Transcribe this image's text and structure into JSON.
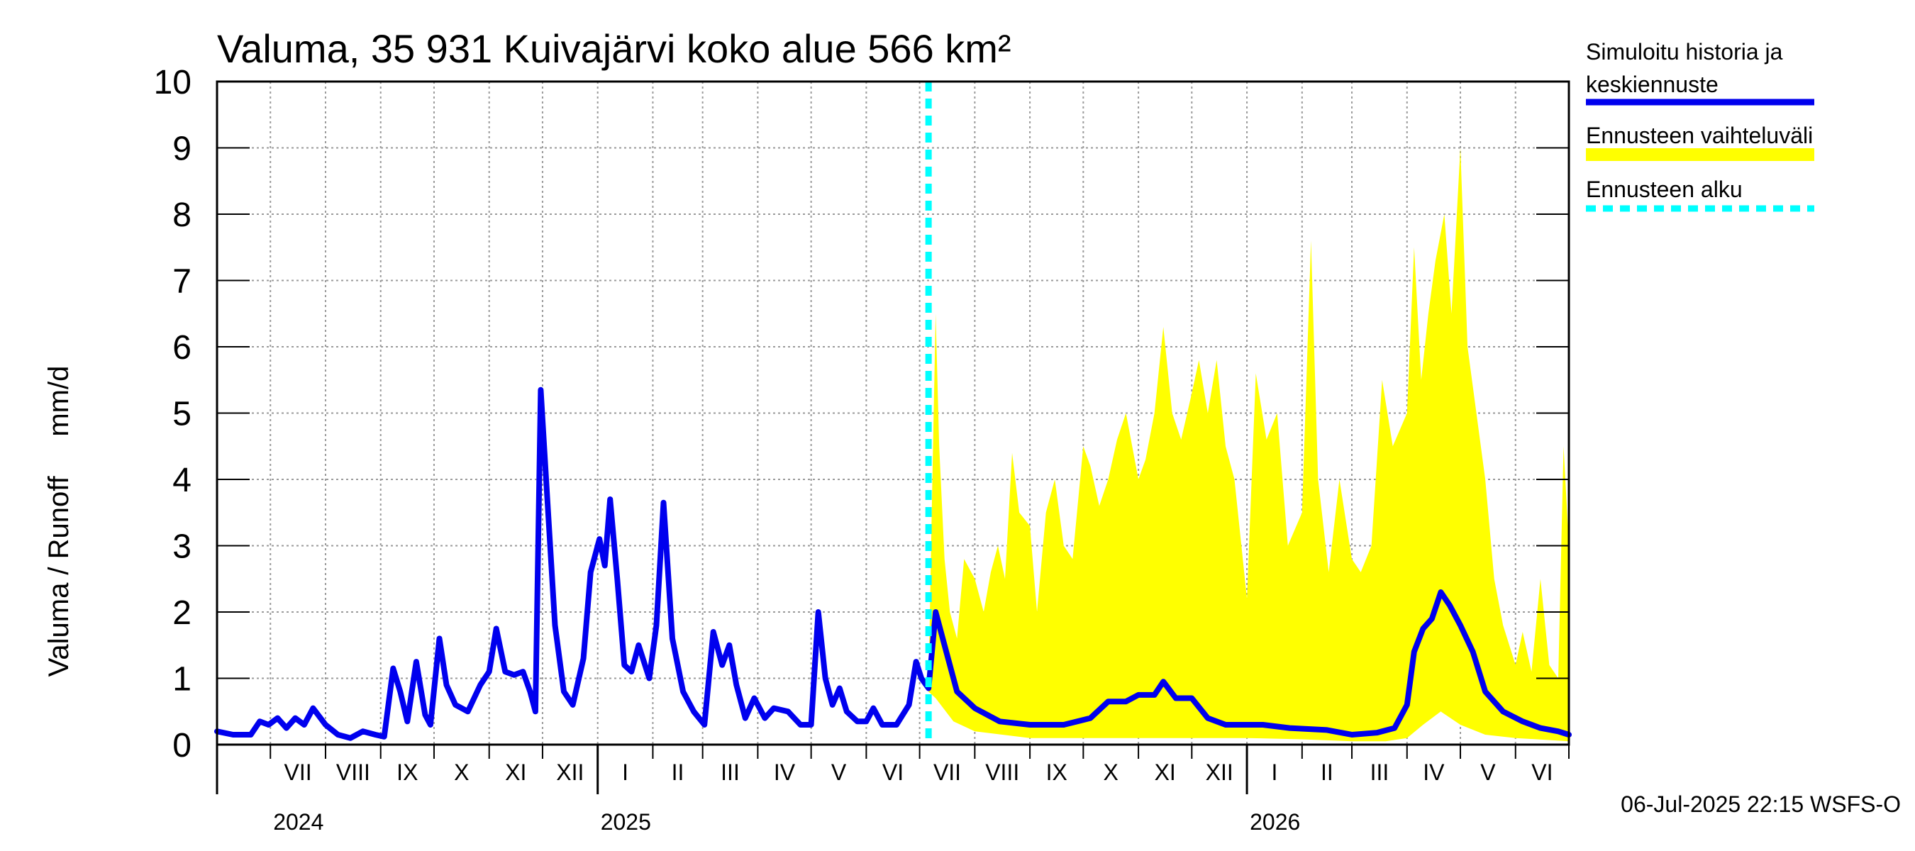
{
  "chart_data": {
    "type": "area",
    "title": "Valuma, 35 931 Kuivajärvi koko alue 566 km²",
    "ylabel": "Valuma / Runoff     mm/d",
    "ylim": [
      0,
      10
    ],
    "yticks": [
      0,
      1,
      2,
      3,
      4,
      5,
      6,
      7,
      8,
      9,
      10
    ],
    "grid": true,
    "legend_position": "right",
    "xlim": [
      "2024-06-01",
      "2026-07-01"
    ],
    "month_labels": [
      {
        "label": "VII",
        "month": "2024-07"
      },
      {
        "label": "VIII",
        "month": "2024-08"
      },
      {
        "label": "IX",
        "month": "2024-09"
      },
      {
        "label": "X",
        "month": "2024-10"
      },
      {
        "label": "XI",
        "month": "2024-11"
      },
      {
        "label": "XII",
        "month": "2024-12"
      },
      {
        "label": "I",
        "month": "2025-01"
      },
      {
        "label": "II",
        "month": "2025-02"
      },
      {
        "label": "III",
        "month": "2025-03"
      },
      {
        "label": "IV",
        "month": "2025-04"
      },
      {
        "label": "V",
        "month": "2025-05"
      },
      {
        "label": "VI",
        "month": "2025-06"
      },
      {
        "label": "VII",
        "month": "2025-07"
      },
      {
        "label": "VIII",
        "month": "2025-08"
      },
      {
        "label": "IX",
        "month": "2025-09"
      },
      {
        "label": "X",
        "month": "2025-10"
      },
      {
        "label": "XI",
        "month": "2025-11"
      },
      {
        "label": "XII",
        "month": "2025-12"
      },
      {
        "label": "I",
        "month": "2026-01"
      },
      {
        "label": "II",
        "month": "2026-02"
      },
      {
        "label": "III",
        "month": "2026-03"
      },
      {
        "label": "IV",
        "month": "2026-04"
      },
      {
        "label": "V",
        "month": "2026-05"
      },
      {
        "label": "VI",
        "month": "2026-06"
      }
    ],
    "year_labels": [
      {
        "label": "2024",
        "month": "2024-07"
      },
      {
        "label": "2025",
        "month": "2025-01"
      },
      {
        "label": "2026",
        "month": "2026-01"
      }
    ],
    "forecast_start": "2025-07-06",
    "series": [
      {
        "name": "Simuloitu historia ja keskiennuste",
        "color": "#0000ee",
        "points": [
          [
            "2024-06-01",
            0.2
          ],
          [
            "2024-06-10",
            0.15
          ],
          [
            "2024-06-20",
            0.15
          ],
          [
            "2024-06-25",
            0.35
          ],
          [
            "2024-06-30",
            0.3
          ],
          [
            "2024-07-05",
            0.4
          ],
          [
            "2024-07-10",
            0.25
          ],
          [
            "2024-07-15",
            0.4
          ],
          [
            "2024-07-20",
            0.3
          ],
          [
            "2024-07-25",
            0.55
          ],
          [
            "2024-08-01",
            0.3
          ],
          [
            "2024-08-08",
            0.15
          ],
          [
            "2024-08-15",
            0.1
          ],
          [
            "2024-08-22",
            0.2
          ],
          [
            "2024-08-29",
            0.15
          ],
          [
            "2024-09-03",
            0.12
          ],
          [
            "2024-09-08",
            1.15
          ],
          [
            "2024-09-12",
            0.8
          ],
          [
            "2024-09-16",
            0.35
          ],
          [
            "2024-09-21",
            1.25
          ],
          [
            "2024-09-26",
            0.45
          ],
          [
            "2024-09-29",
            0.3
          ],
          [
            "2024-10-04",
            1.6
          ],
          [
            "2024-10-08",
            0.9
          ],
          [
            "2024-10-13",
            0.6
          ],
          [
            "2024-10-20",
            0.5
          ],
          [
            "2024-10-27",
            0.9
          ],
          [
            "2024-11-01",
            1.1
          ],
          [
            "2024-11-05",
            1.75
          ],
          [
            "2024-11-10",
            1.1
          ],
          [
            "2024-11-15",
            1.05
          ],
          [
            "2024-11-20",
            1.1
          ],
          [
            "2024-11-24",
            0.8
          ],
          [
            "2024-11-27",
            0.5
          ],
          [
            "2024-11-30",
            5.35
          ],
          [
            "2024-12-03",
            4.0
          ],
          [
            "2024-12-08",
            1.8
          ],
          [
            "2024-12-13",
            0.8
          ],
          [
            "2024-12-18",
            0.6
          ],
          [
            "2024-12-24",
            1.3
          ],
          [
            "2024-12-28",
            2.6
          ],
          [
            "2025-01-02",
            3.1
          ],
          [
            "2025-01-05",
            2.7
          ],
          [
            "2025-01-08",
            3.7
          ],
          [
            "2025-01-12",
            2.5
          ],
          [
            "2025-01-16",
            1.2
          ],
          [
            "2025-01-20",
            1.1
          ],
          [
            "2025-01-24",
            1.5
          ],
          [
            "2025-01-30",
            1.0
          ],
          [
            "2025-02-03",
            1.8
          ],
          [
            "2025-02-07",
            3.65
          ],
          [
            "2025-02-12",
            1.6
          ],
          [
            "2025-02-18",
            0.8
          ],
          [
            "2025-02-24",
            0.5
          ],
          [
            "2025-03-02",
            0.3
          ],
          [
            "2025-03-07",
            1.7
          ],
          [
            "2025-03-12",
            1.2
          ],
          [
            "2025-03-16",
            1.5
          ],
          [
            "2025-03-20",
            0.9
          ],
          [
            "2025-03-25",
            0.4
          ],
          [
            "2025-03-30",
            0.7
          ],
          [
            "2025-04-05",
            0.4
          ],
          [
            "2025-04-10",
            0.55
          ],
          [
            "2025-04-18",
            0.5
          ],
          [
            "2025-04-25",
            0.3
          ],
          [
            "2025-05-01",
            0.3
          ],
          [
            "2025-05-05",
            2.0
          ],
          [
            "2025-05-09",
            1.0
          ],
          [
            "2025-05-13",
            0.6
          ],
          [
            "2025-05-17",
            0.85
          ],
          [
            "2025-05-21",
            0.5
          ],
          [
            "2025-05-27",
            0.35
          ],
          [
            "2025-06-01",
            0.35
          ],
          [
            "2025-06-05",
            0.55
          ],
          [
            "2025-06-10",
            0.3
          ],
          [
            "2025-06-18",
            0.3
          ],
          [
            "2025-06-25",
            0.6
          ],
          [
            "2025-06-29",
            1.25
          ],
          [
            "2025-07-02",
            1.0
          ],
          [
            "2025-07-06",
            0.85
          ],
          [
            "2025-07-10",
            2.0
          ],
          [
            "2025-07-15",
            1.5
          ],
          [
            "2025-07-22",
            0.8
          ],
          [
            "2025-08-01",
            0.55
          ],
          [
            "2025-08-15",
            0.35
          ],
          [
            "2025-09-01",
            0.3
          ],
          [
            "2025-09-20",
            0.3
          ],
          [
            "2025-10-05",
            0.4
          ],
          [
            "2025-10-15",
            0.65
          ],
          [
            "2025-10-25",
            0.65
          ],
          [
            "2025-11-01",
            0.75
          ],
          [
            "2025-11-10",
            0.75
          ],
          [
            "2025-11-15",
            0.95
          ],
          [
            "2025-11-22",
            0.7
          ],
          [
            "2025-12-01",
            0.7
          ],
          [
            "2025-12-10",
            0.4
          ],
          [
            "2025-12-20",
            0.3
          ],
          [
            "2026-01-10",
            0.3
          ],
          [
            "2026-01-25",
            0.25
          ],
          [
            "2026-02-15",
            0.22
          ],
          [
            "2026-03-01",
            0.15
          ],
          [
            "2026-03-15",
            0.18
          ],
          [
            "2026-03-25",
            0.25
          ],
          [
            "2026-04-01",
            0.6
          ],
          [
            "2026-04-05",
            1.4
          ],
          [
            "2026-04-10",
            1.75
          ],
          [
            "2026-04-15",
            1.9
          ],
          [
            "2026-04-20",
            2.3
          ],
          [
            "2026-04-25",
            2.1
          ],
          [
            "2026-05-01",
            1.8
          ],
          [
            "2026-05-08",
            1.4
          ],
          [
            "2026-05-15",
            0.8
          ],
          [
            "2026-05-25",
            0.5
          ],
          [
            "2026-06-05",
            0.35
          ],
          [
            "2026-06-15",
            0.25
          ],
          [
            "2026-06-25",
            0.2
          ],
          [
            "2026-07-01",
            0.15
          ]
        ]
      },
      {
        "name": "Ennusteen vaihteluväli",
        "color": "#ffff00",
        "upper": [
          [
            "2025-07-06",
            0.9
          ],
          [
            "2025-07-08",
            3.8
          ],
          [
            "2025-07-10",
            6.5
          ],
          [
            "2025-07-12",
            4.5
          ],
          [
            "2025-07-15",
            2.8
          ],
          [
            "2025-07-18",
            2.0
          ],
          [
            "2025-07-22",
            1.6
          ],
          [
            "2025-07-26",
            2.8
          ],
          [
            "2025-08-01",
            2.5
          ],
          [
            "2025-08-06",
            2.0
          ],
          [
            "2025-08-10",
            2.6
          ],
          [
            "2025-08-14",
            3.0
          ],
          [
            "2025-08-18",
            2.5
          ],
          [
            "2025-08-22",
            4.4
          ],
          [
            "2025-08-26",
            3.5
          ],
          [
            "2025-09-01",
            3.3
          ],
          [
            "2025-09-05",
            2.0
          ],
          [
            "2025-09-10",
            3.5
          ],
          [
            "2025-09-15",
            4.0
          ],
          [
            "2025-09-20",
            3.0
          ],
          [
            "2025-09-25",
            2.8
          ],
          [
            "2025-10-01",
            4.5
          ],
          [
            "2025-10-05",
            4.2
          ],
          [
            "2025-10-10",
            3.6
          ],
          [
            "2025-10-15",
            4.0
          ],
          [
            "2025-10-20",
            4.6
          ],
          [
            "2025-10-25",
            5.0
          ],
          [
            "2025-11-01",
            4.0
          ],
          [
            "2025-11-05",
            4.3
          ],
          [
            "2025-11-10",
            5.0
          ],
          [
            "2025-11-15",
            6.3
          ],
          [
            "2025-11-20",
            5.0
          ],
          [
            "2025-11-25",
            4.6
          ],
          [
            "2025-12-01",
            5.3
          ],
          [
            "2025-12-05",
            5.8
          ],
          [
            "2025-12-10",
            5.0
          ],
          [
            "2025-12-15",
            5.8
          ],
          [
            "2025-12-20",
            4.5
          ],
          [
            "2025-12-25",
            4.0
          ],
          [
            "2026-01-01",
            2.2
          ],
          [
            "2026-01-06",
            5.6
          ],
          [
            "2026-01-12",
            4.6
          ],
          [
            "2026-01-18",
            5.0
          ],
          [
            "2026-01-24",
            3.0
          ],
          [
            "2026-02-01",
            3.5
          ],
          [
            "2026-02-06",
            7.6
          ],
          [
            "2026-02-10",
            4.0
          ],
          [
            "2026-02-16",
            2.6
          ],
          [
            "2026-02-22",
            4.0
          ],
          [
            "2026-03-01",
            2.8
          ],
          [
            "2026-03-06",
            2.6
          ],
          [
            "2026-03-12",
            3.0
          ],
          [
            "2026-03-18",
            5.5
          ],
          [
            "2026-03-24",
            4.5
          ],
          [
            "2026-04-01",
            5.0
          ],
          [
            "2026-04-05",
            7.5
          ],
          [
            "2026-04-09",
            5.5
          ],
          [
            "2026-04-13",
            6.5
          ],
          [
            "2026-04-17",
            7.3
          ],
          [
            "2026-04-22",
            8.0
          ],
          [
            "2026-04-26",
            6.5
          ],
          [
            "2026-05-01",
            9.0
          ],
          [
            "2026-05-05",
            6.0
          ],
          [
            "2026-05-10",
            5.0
          ],
          [
            "2026-05-15",
            4.0
          ],
          [
            "2026-05-20",
            2.5
          ],
          [
            "2026-05-25",
            1.8
          ],
          [
            "2026-06-01",
            1.2
          ],
          [
            "2026-06-05",
            1.7
          ],
          [
            "2026-06-10",
            1.1
          ],
          [
            "2026-06-15",
            2.5
          ],
          [
            "2026-06-20",
            1.2
          ],
          [
            "2026-06-25",
            1.0
          ],
          [
            "2026-06-28",
            4.5
          ],
          [
            "2026-07-01",
            3.0
          ]
        ],
        "lower": [
          [
            "2025-07-06",
            0.8
          ],
          [
            "2025-07-10",
            0.7
          ],
          [
            "2025-07-20",
            0.35
          ],
          [
            "2025-08-01",
            0.2
          ],
          [
            "2025-09-01",
            0.1
          ],
          [
            "2025-10-01",
            0.1
          ],
          [
            "2025-11-01",
            0.1
          ],
          [
            "2025-12-01",
            0.1
          ],
          [
            "2026-01-01",
            0.1
          ],
          [
            "2026-02-01",
            0.08
          ],
          [
            "2026-03-01",
            0.05
          ],
          [
            "2026-03-20",
            0.05
          ],
          [
            "2026-04-01",
            0.1
          ],
          [
            "2026-04-10",
            0.3
          ],
          [
            "2026-04-20",
            0.5
          ],
          [
            "2026-05-01",
            0.3
          ],
          [
            "2026-05-15",
            0.15
          ],
          [
            "2026-06-01",
            0.1
          ],
          [
            "2026-07-01",
            0.05
          ]
        ]
      }
    ],
    "legend": [
      {
        "label": "Simuloitu historia ja\nkeskiennuste",
        "color": "#0000ee",
        "style": "solid"
      },
      {
        "label": "Ennusteen vaihteluväli",
        "color": "#ffff00",
        "style": "solid"
      },
      {
        "label": "Ennusteen alku",
        "color": "#00ffff",
        "style": "dashed"
      }
    ],
    "forecast_line_color": "#00ffff"
  },
  "timestamp": "06-Jul-2025 22:15 WSFS-O"
}
